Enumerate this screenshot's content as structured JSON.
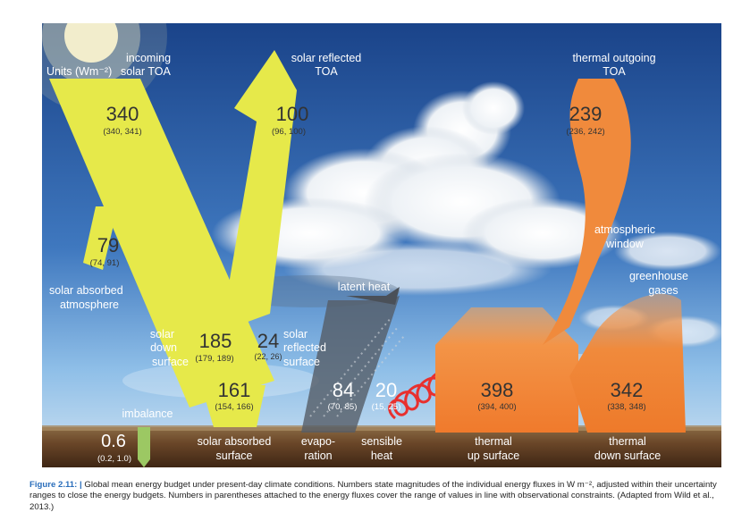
{
  "units_label": "Units (Wm⁻²)",
  "colors": {
    "solar": "#e6e94a",
    "thermal": "#f08a3c",
    "imbalance": "#9cc863",
    "evaporation": "#4a5058",
    "sensible": "#e8302e",
    "sky_top": "#1d4a8c",
    "sky_bottom": "#7fb2e3",
    "ground": "#6b4a2c"
  },
  "fluxes": {
    "incoming_solar_toa": {
      "label_line1": "incoming",
      "label_line2": "solar TOA",
      "value": "340",
      "range": "(340, 341)"
    },
    "solar_reflected_toa": {
      "label_line1": "solar reflected",
      "label_line2": "TOA",
      "value": "100",
      "range": "(96, 100)"
    },
    "thermal_outgoing_toa": {
      "label_line1": "thermal outgoing",
      "label_line2": "TOA",
      "value": "239",
      "range": "(236, 242)"
    },
    "solar_absorbed_atmosphere": {
      "label_line1": "solar absorbed",
      "label_line2": "atmosphere",
      "value": "79",
      "range": "(74, 91)"
    },
    "solar_down_surface": {
      "label_line1": "solar",
      "label_line2": "down",
      "label_line3": "surface",
      "value": "185",
      "range": "(179, 189)"
    },
    "solar_reflected_surface": {
      "label_line1": "solar",
      "label_line2": "reflected",
      "label_line3": "surface",
      "value": "24",
      "range": "(22, 26)"
    },
    "solar_absorbed_surface": {
      "label_line1": "solar absorbed",
      "label_line2": "surface",
      "value": "161",
      "range": "(154, 166)"
    },
    "imbalance": {
      "label": "imbalance",
      "value": "0.6",
      "range": "(0.2, 1.0)"
    },
    "latent_heat": {
      "label": "latent heat"
    },
    "evaporation": {
      "label_line1": "evapo-",
      "label_line2": "ration",
      "value": "84",
      "range": "(70, 85)"
    },
    "sensible_heat": {
      "label_line1": "sensible",
      "label_line2": "heat",
      "value": "20",
      "range": "(15, 25)"
    },
    "thermal_up_surface": {
      "label_line1": "thermal",
      "label_line2": "up surface",
      "value": "398",
      "range": "(394, 400)"
    },
    "thermal_down_surface": {
      "label_line1": "thermal",
      "label_line2": "down surface",
      "value": "342",
      "range": "(338, 348)"
    },
    "atmospheric_window": {
      "label_line1": "atmospheric",
      "label_line2": "window"
    },
    "greenhouse_gases": {
      "label_line1": "greenhouse",
      "label_line2": "gases"
    }
  },
  "caption": {
    "figure_label": "Figure 2.11:",
    "separator": "|",
    "text": "Global mean energy budget under present-day climate conditions. Numbers state magnitudes of the individual energy fluxes in W m⁻², adjusted within their uncertainty ranges to close the energy budgets. Numbers in parentheses attached to the energy fluxes cover the range of values in line with observational constraints. (Adapted from Wild et al., 2013.)"
  }
}
